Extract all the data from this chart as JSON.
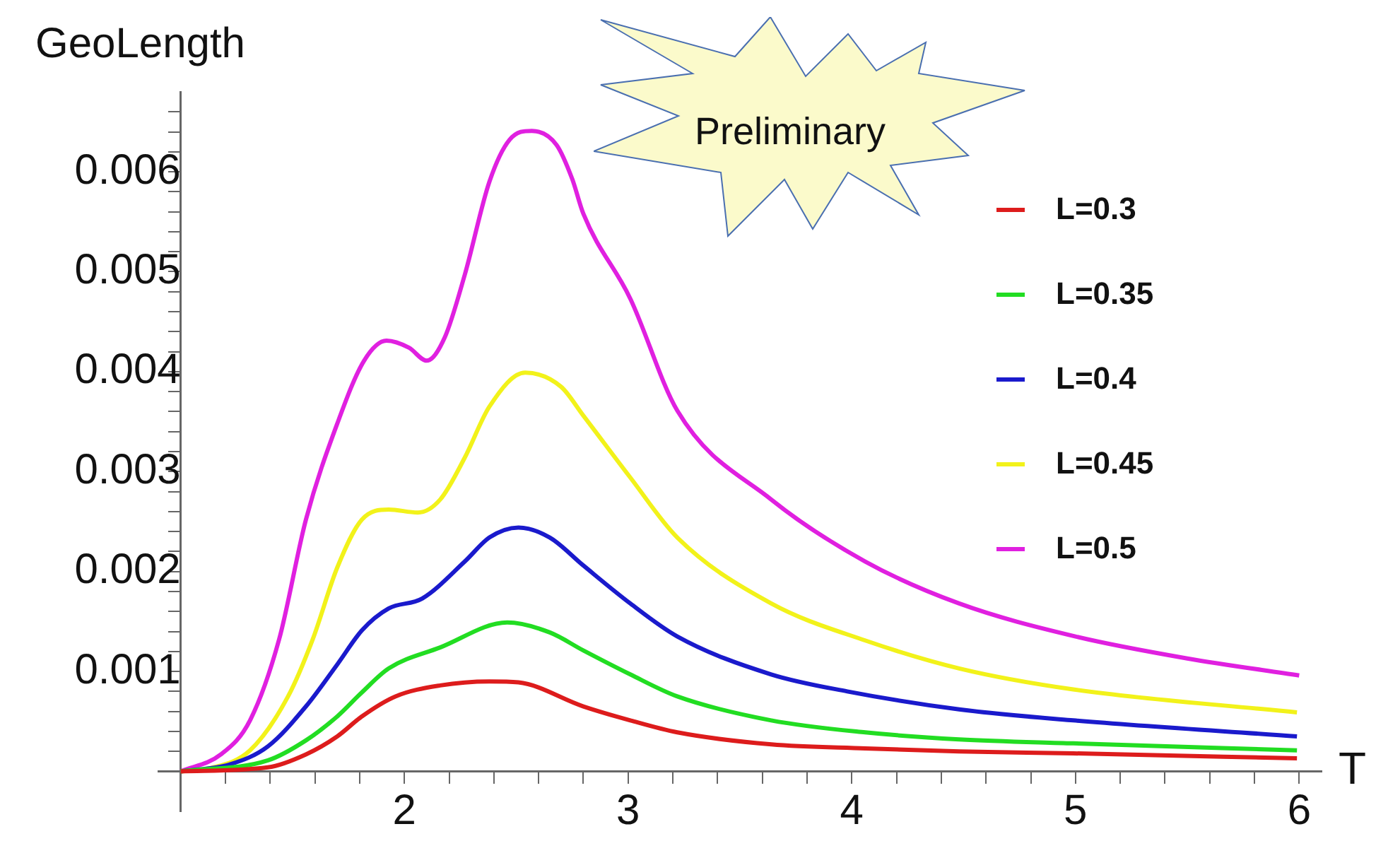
{
  "chart_data": {
    "type": "line",
    "xlabel": "T",
    "ylabel": "GeoLength",
    "annotations": [
      "Preliminary"
    ],
    "legend": "top right",
    "marker": "none",
    "line_style": "solid",
    "xlim": [
      0.9,
      6.1
    ],
    "ylim": [
      -0.0004,
      0.0068
    ],
    "xticks": [
      {
        "value": 1.2,
        "label": null
      },
      {
        "value": 1.4,
        "label": null
      },
      {
        "value": 1.6,
        "label": null
      },
      {
        "value": 1.8,
        "label": null
      },
      2,
      {
        "value": 2.2,
        "label": null
      },
      {
        "value": 2.4,
        "label": null
      },
      {
        "value": 2.6,
        "label": null
      },
      {
        "value": 2.8,
        "label": null
      },
      3,
      {
        "value": 3.2,
        "label": null
      },
      {
        "value": 3.4,
        "label": null
      },
      {
        "value": 3.6,
        "label": null
      },
      {
        "value": 3.8,
        "label": null
      },
      4,
      {
        "value": 4.2,
        "label": null
      },
      {
        "value": 4.4,
        "label": null
      },
      {
        "value": 4.6,
        "label": null
      },
      {
        "value": 4.8,
        "label": null
      },
      5,
      {
        "value": 5.2,
        "label": null
      },
      {
        "value": 5.4,
        "label": null
      },
      {
        "value": 5.6,
        "label": null
      },
      {
        "value": 5.8,
        "label": null
      },
      6
    ],
    "yticks": [
      {
        "value": 0.0002,
        "label": null
      },
      {
        "value": 0.0004,
        "label": null
      },
      {
        "value": 0.0006,
        "label": null
      },
      {
        "value": 0.0008,
        "label": null
      },
      0.001,
      {
        "value": 0.0012,
        "label": null
      },
      {
        "value": 0.0014,
        "label": null
      },
      {
        "value": 0.0016,
        "label": null
      },
      {
        "value": 0.0018,
        "label": null
      },
      0.002,
      {
        "value": 0.0022,
        "label": null
      },
      {
        "value": 0.0024,
        "label": null
      },
      {
        "value": 0.0026,
        "label": null
      },
      {
        "value": 0.0028,
        "label": null
      },
      0.003,
      {
        "value": 0.0032,
        "label": null
      },
      {
        "value": 0.0034,
        "label": null
      },
      {
        "value": 0.0036,
        "label": null
      },
      {
        "value": 0.0038,
        "label": null
      },
      0.004,
      {
        "value": 0.0042,
        "label": null
      },
      {
        "value": 0.0044,
        "label": null
      },
      {
        "value": 0.0046,
        "label": null
      },
      {
        "value": 0.0048,
        "label": null
      },
      0.005,
      {
        "value": 0.0052,
        "label": null
      },
      {
        "value": 0.0054,
        "label": null
      },
      {
        "value": 0.0056,
        "label": null
      },
      {
        "value": 0.0058,
        "label": null
      },
      0.006,
      {
        "value": 0.0062,
        "label": null
      },
      {
        "value": 0.0064,
        "label": null
      },
      {
        "value": 0.0066,
        "label": null
      }
    ],
    "series": [
      {
        "name": "L=0.3",
        "color": "#dd1c1c",
        "x": [
          1,
          1.39,
          1.56,
          1.7,
          1.81,
          1.96,
          2.16,
          2.38,
          2.51,
          2.8,
          3.01,
          3.22,
          3.64,
          4.06,
          4.48,
          4.99,
          5.99
        ],
        "values": [
          0,
          4e-05,
          0.00017,
          0.00035,
          0.00055,
          0.00075,
          0.00086,
          0.0009,
          0.00089,
          0.00065,
          0.00051,
          0.00039,
          0.00027,
          0.00023,
          0.0002,
          0.00018,
          0.00013
        ]
      },
      {
        "name": "L=0.35",
        "color": "#22dd22",
        "x": [
          1,
          1.39,
          1.56,
          1.7,
          1.81,
          1.93,
          2.16,
          2.46,
          2.65,
          2.8,
          3.01,
          3.22,
          3.64,
          4.06,
          4.48,
          4.99,
          5.99
        ],
        "values": [
          0,
          0.00011,
          0.00031,
          0.00055,
          0.00079,
          0.00103,
          0.00124,
          0.00149,
          0.00139,
          0.00121,
          0.00097,
          0.00075,
          0.00051,
          0.00039,
          0.00032,
          0.00028,
          0.00021
        ]
      },
      {
        "name": "L=0.4",
        "color": "#1a1acc",
        "x": [
          1,
          1.22,
          1.39,
          1.56,
          1.7,
          1.81,
          1.93,
          2.08,
          2.27,
          2.38,
          2.51,
          2.65,
          2.8,
          3.01,
          3.22,
          3.64,
          3.98,
          4.48,
          4.99,
          5.99
        ],
        "values": [
          0,
          7e-05,
          0.00025,
          0.00065,
          0.00107,
          0.00141,
          0.00163,
          0.00173,
          0.0021,
          0.00234,
          0.00244,
          0.00234,
          0.00206,
          0.00168,
          0.00135,
          0.00097,
          0.0008,
          0.00062,
          0.00051,
          0.00035
        ]
      },
      {
        "name": "L=0.45",
        "color": "#f2f21a",
        "x": [
          1,
          1.13,
          1.31,
          1.48,
          1.59,
          1.7,
          1.81,
          1.93,
          2.06,
          2.16,
          2.27,
          2.38,
          2.54,
          2.7,
          2.8,
          3.01,
          3.22,
          3.64,
          4.06,
          4.48,
          4.99,
          5.99
        ],
        "values": [
          0,
          3e-05,
          0.00021,
          0.00075,
          0.00132,
          0.00204,
          0.00252,
          0.00262,
          0.00259,
          0.00272,
          0.00314,
          0.00365,
          0.00399,
          0.00385,
          0.00356,
          0.00294,
          0.00234,
          0.00168,
          0.00131,
          0.00103,
          0.00082,
          0.00059
        ]
      },
      {
        "name": "L=0.5",
        "color": "#e020e0",
        "x": [
          1,
          1.18,
          1.31,
          1.44,
          1.56,
          1.7,
          1.82,
          1.92,
          2.02,
          2.1,
          2.18,
          2.27,
          2.38,
          2.47,
          2.57,
          2.68,
          2.75,
          2.8,
          3.01,
          3.22,
          3.64,
          4.06,
          4.48,
          5,
          5.5,
          6
        ],
        "values": [
          0,
          0.00017,
          0.00051,
          0.00132,
          0.00252,
          0.00348,
          0.00411,
          0.00431,
          0.00424,
          0.00411,
          0.00434,
          0.00497,
          0.0059,
          0.00632,
          0.00641,
          0.00627,
          0.00593,
          0.00558,
          0.00473,
          0.00361,
          0.00272,
          0.0021,
          0.00168,
          0.00135,
          0.00113,
          0.00096
        ]
      }
    ]
  }
}
